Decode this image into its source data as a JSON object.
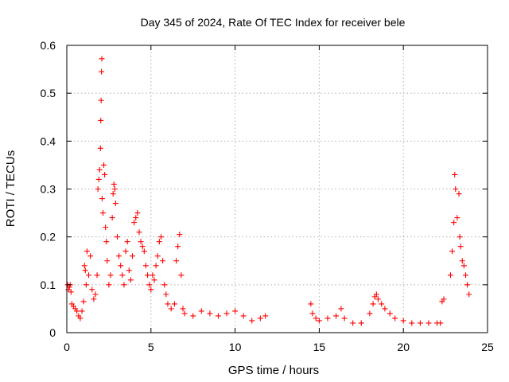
{
  "chart_data": {
    "type": "scatter",
    "title": "Day 345 of 2024, Rate Of TEC Index for receiver bele",
    "xlabel": "GPS time / hours",
    "ylabel": "ROTI / TECUs",
    "xlim": [
      0,
      25
    ],
    "ylim": [
      0,
      0.6
    ],
    "xticks": [
      "0",
      "5",
      "10",
      "15",
      "20",
      "25"
    ],
    "yticks": [
      "0",
      "0.1",
      "0.2",
      "0.3",
      "0.4",
      "0.5",
      "0.6"
    ],
    "grid": true,
    "marker": "plus",
    "color": "#ff0000",
    "points": [
      [
        0.05,
        0.1
      ],
      [
        0.1,
        0.09
      ],
      [
        0.15,
        0.095
      ],
      [
        0.2,
        0.1
      ],
      [
        0.25,
        0.085
      ],
      [
        0.3,
        0.06
      ],
      [
        0.4,
        0.055
      ],
      [
        0.5,
        0.05
      ],
      [
        0.6,
        0.045
      ],
      [
        0.7,
        0.035
      ],
      [
        0.8,
        0.03
      ],
      [
        0.9,
        0.045
      ],
      [
        1.0,
        0.065
      ],
      [
        1.05,
        0.14
      ],
      [
        1.1,
        0.13
      ],
      [
        1.15,
        0.1
      ],
      [
        1.2,
        0.17
      ],
      [
        1.3,
        0.12
      ],
      [
        1.4,
        0.16
      ],
      [
        1.5,
        0.09
      ],
      [
        1.6,
        0.07
      ],
      [
        1.7,
        0.08
      ],
      [
        1.8,
        0.12
      ],
      [
        1.85,
        0.3
      ],
      [
        1.9,
        0.32
      ],
      [
        1.95,
        0.34
      ],
      [
        2.0,
        0.385
      ],
      [
        2.02,
        0.443
      ],
      [
        2.04,
        0.485
      ],
      [
        2.06,
        0.545
      ],
      [
        2.08,
        0.572
      ],
      [
        2.1,
        0.28
      ],
      [
        2.15,
        0.25
      ],
      [
        2.2,
        0.35
      ],
      [
        2.25,
        0.33
      ],
      [
        2.3,
        0.22
      ],
      [
        2.35,
        0.19
      ],
      [
        2.4,
        0.15
      ],
      [
        2.5,
        0.1
      ],
      [
        2.6,
        0.12
      ],
      [
        2.7,
        0.24
      ],
      [
        2.75,
        0.29
      ],
      [
        2.8,
        0.31
      ],
      [
        2.85,
        0.3
      ],
      [
        2.9,
        0.27
      ],
      [
        3.0,
        0.2
      ],
      [
        3.1,
        0.16
      ],
      [
        3.2,
        0.14
      ],
      [
        3.3,
        0.12
      ],
      [
        3.4,
        0.1
      ],
      [
        3.5,
        0.17
      ],
      [
        3.6,
        0.19
      ],
      [
        3.7,
        0.13
      ],
      [
        3.8,
        0.11
      ],
      [
        3.9,
        0.16
      ],
      [
        4.0,
        0.23
      ],
      [
        4.1,
        0.24
      ],
      [
        4.2,
        0.25
      ],
      [
        4.3,
        0.21
      ],
      [
        4.4,
        0.19
      ],
      [
        4.5,
        0.18
      ],
      [
        4.6,
        0.17
      ],
      [
        4.7,
        0.14
      ],
      [
        4.8,
        0.12
      ],
      [
        4.9,
        0.1
      ],
      [
        5.0,
        0.09
      ],
      [
        5.1,
        0.12
      ],
      [
        5.2,
        0.11
      ],
      [
        5.3,
        0.14
      ],
      [
        5.4,
        0.16
      ],
      [
        5.5,
        0.19
      ],
      [
        5.6,
        0.2
      ],
      [
        5.7,
        0.15
      ],
      [
        5.8,
        0.1
      ],
      [
        5.9,
        0.08
      ],
      [
        6.0,
        0.06
      ],
      [
        6.2,
        0.05
      ],
      [
        6.4,
        0.06
      ],
      [
        6.5,
        0.15
      ],
      [
        6.6,
        0.18
      ],
      [
        6.7,
        0.205
      ],
      [
        6.8,
        0.12
      ],
      [
        6.9,
        0.05
      ],
      [
        7.0,
        0.04
      ],
      [
        7.5,
        0.035
      ],
      [
        8.0,
        0.045
      ],
      [
        8.5,
        0.04
      ],
      [
        9.0,
        0.035
      ],
      [
        9.5,
        0.04
      ],
      [
        10.0,
        0.045
      ],
      [
        10.5,
        0.035
      ],
      [
        11.0,
        0.025
      ],
      [
        11.5,
        0.03
      ],
      [
        11.8,
        0.035
      ],
      [
        14.5,
        0.06
      ],
      [
        14.6,
        0.04
      ],
      [
        14.8,
        0.03
      ],
      [
        15.0,
        0.025
      ],
      [
        15.5,
        0.03
      ],
      [
        16.0,
        0.035
      ],
      [
        16.3,
        0.05
      ],
      [
        16.5,
        0.03
      ],
      [
        17.0,
        0.02
      ],
      [
        17.5,
        0.02
      ],
      [
        18.0,
        0.04
      ],
      [
        18.2,
        0.06
      ],
      [
        18.3,
        0.075
      ],
      [
        18.4,
        0.08
      ],
      [
        18.5,
        0.07
      ],
      [
        18.7,
        0.06
      ],
      [
        18.9,
        0.05
      ],
      [
        19.2,
        0.04
      ],
      [
        19.5,
        0.03
      ],
      [
        20.0,
        0.025
      ],
      [
        20.5,
        0.02
      ],
      [
        21.0,
        0.02
      ],
      [
        21.5,
        0.02
      ],
      [
        22.0,
        0.02
      ],
      [
        22.2,
        0.02
      ],
      [
        22.3,
        0.065
      ],
      [
        22.4,
        0.07
      ],
      [
        22.8,
        0.12
      ],
      [
        22.9,
        0.17
      ],
      [
        23.0,
        0.23
      ],
      [
        23.05,
        0.33
      ],
      [
        23.1,
        0.3
      ],
      [
        23.2,
        0.24
      ],
      [
        23.3,
        0.29
      ],
      [
        23.35,
        0.2
      ],
      [
        23.4,
        0.18
      ],
      [
        23.5,
        0.15
      ],
      [
        23.6,
        0.14
      ],
      [
        23.7,
        0.12
      ],
      [
        23.8,
        0.1
      ],
      [
        23.9,
        0.08
      ]
    ]
  }
}
